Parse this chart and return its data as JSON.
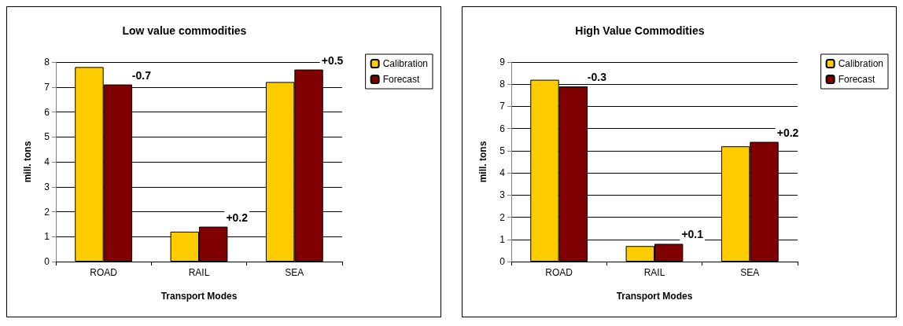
{
  "chart_data": [
    {
      "type": "bar",
      "title": "Low value commodities",
      "xlabel": "Transport Modes",
      "ylabel": "mill. tons",
      "categories": [
        "ROAD",
        "RAIL",
        "SEA"
      ],
      "series": [
        {
          "name": "Calibration",
          "color": "#ffcc00",
          "values": [
            7.8,
            1.2,
            7.2
          ]
        },
        {
          "name": "Forecast",
          "color": "#800000",
          "values": [
            7.1,
            1.4,
            7.7
          ]
        }
      ],
      "annotations": [
        {
          "text": "-0.7",
          "x": "ROAD",
          "y": 7.1
        },
        {
          "text": "+0.2",
          "x": "RAIL",
          "y": 1.4
        },
        {
          "text": "+0.5",
          "x": "SEA",
          "y": 7.7
        }
      ],
      "ylim": [
        0,
        8
      ],
      "yticks": [
        0,
        1,
        2,
        3,
        4,
        5,
        6,
        7,
        8
      ],
      "grid": "y",
      "legend": "top right"
    },
    {
      "type": "bar",
      "title": "High Value Commodities",
      "xlabel": "Transport Modes",
      "ylabel": "mill. tons",
      "categories": [
        "ROAD",
        "RAIL",
        "SEA"
      ],
      "series": [
        {
          "name": "Calibration",
          "color": "#ffcc00",
          "values": [
            8.2,
            0.7,
            5.2
          ]
        },
        {
          "name": "Forecast",
          "color": "#800000",
          "values": [
            7.9,
            0.8,
            5.4
          ]
        }
      ],
      "annotations": [
        {
          "text": "-0.3",
          "x": "ROAD",
          "y": 7.9
        },
        {
          "text": "+0.1",
          "x": "RAIL",
          "y": 0.8
        },
        {
          "text": "+0.2",
          "x": "SEA",
          "y": 5.4
        }
      ],
      "ylim": [
        0,
        9
      ],
      "yticks": [
        0,
        1,
        2,
        3,
        4,
        5,
        6,
        7,
        8,
        9
      ],
      "grid": "y",
      "legend": "top right"
    }
  ]
}
